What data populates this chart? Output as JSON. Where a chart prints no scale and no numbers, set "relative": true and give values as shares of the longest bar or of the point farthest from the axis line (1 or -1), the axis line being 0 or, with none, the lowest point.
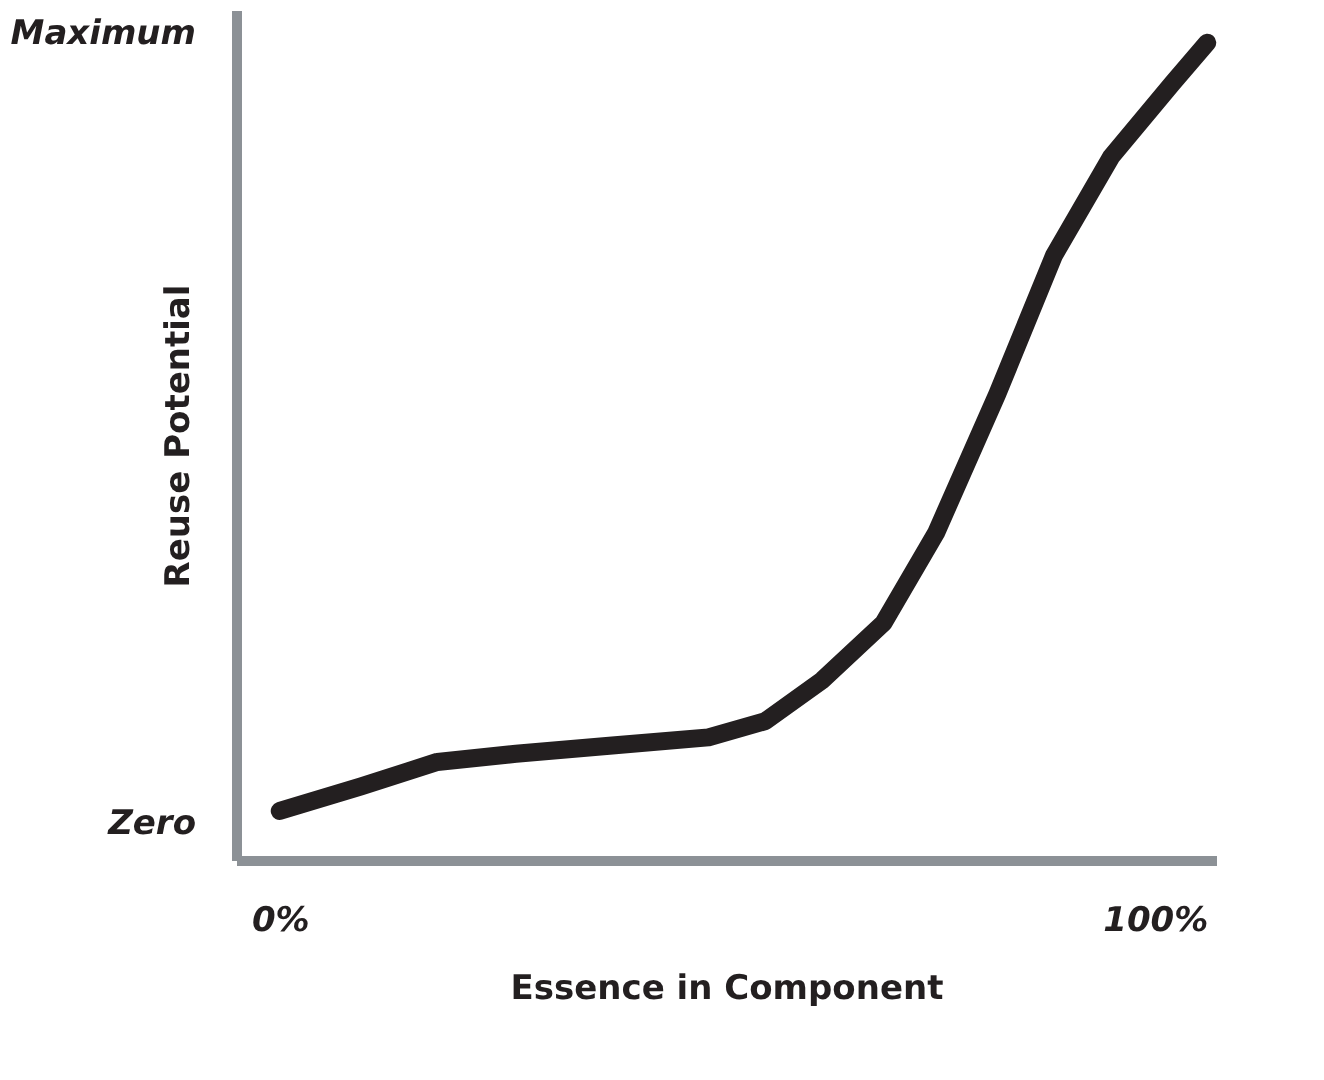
{
  "chart_data": {
    "type": "line",
    "relative": true,
    "xlabel": "Essence in Component",
    "ylabel": "Reuse Potential",
    "annotations": [
      "Maximum",
      "Zero"
    ],
    "x": [
      0,
      9.3,
      18,
      27,
      38,
      49,
      55.5,
      62,
      69,
      75,
      82,
      88.5,
      95,
      102,
      106
    ],
    "series": [
      {
        "color": "#231f20",
        "values": [
          0.06,
          0.09,
          0.12,
          0.13,
          0.14,
          0.15,
          0.17,
          0.22,
          0.29,
          0.4,
          0.57,
          0.74,
          0.86,
          0.95,
          1
        ]
      }
    ],
    "xlim": [
      -5,
      107
    ],
    "xticks": [
      {
        "value": 0,
        "label": "0%"
      },
      {
        "value": 100,
        "label": "100%"
      }
    ],
    "grid": false,
    "legend": false
  }
}
